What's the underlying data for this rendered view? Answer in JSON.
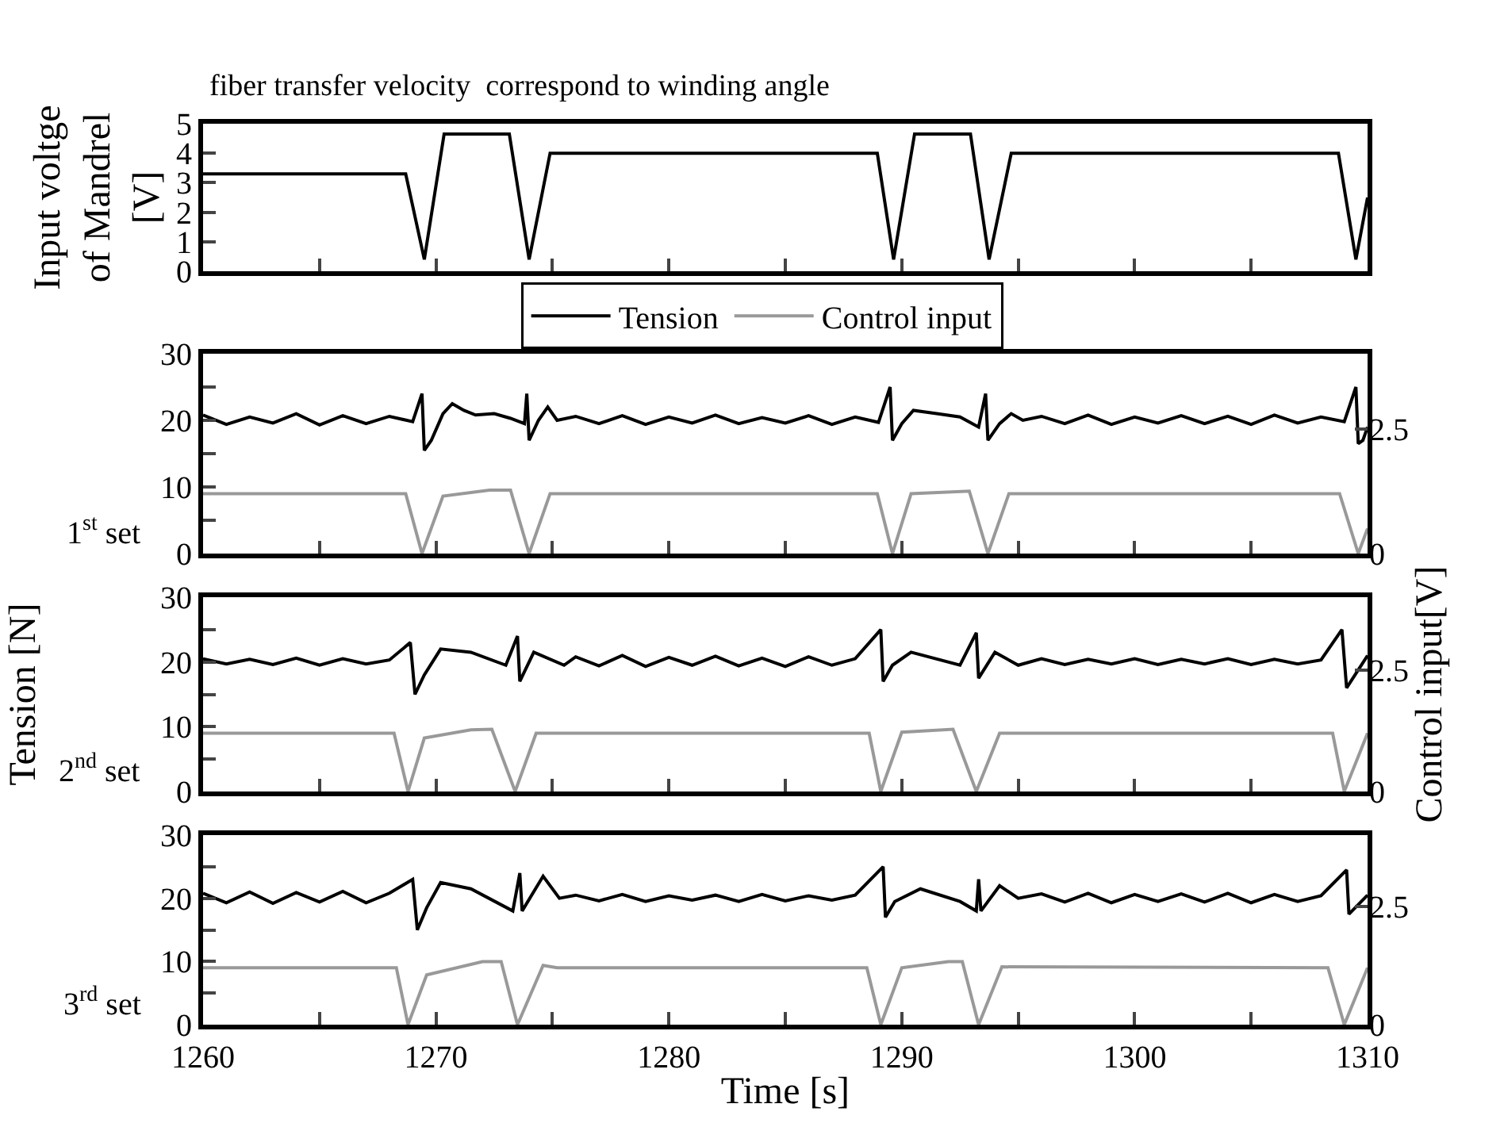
{
  "chart_data": [
    {
      "type": "line",
      "title": "fiber transfer velocity  correspond to winding angle",
      "ylabel": "Input voltge\nof Mandrel\n[V]",
      "xlim": [
        1260,
        1310
      ],
      "xticks": [
        1260,
        {
          "value": 1265,
          "label": null
        },
        1270,
        {
          "value": 1275,
          "label": null
        },
        1280,
        {
          "value": 1285,
          "label": null
        },
        1290,
        {
          "value": 1295,
          "label": null
        },
        1300,
        {
          "value": 1305,
          "label": null
        },
        1310
      ],
      "ylim": [
        0,
        5
      ],
      "yticks": [
        0,
        1,
        2,
        3,
        4,
        5
      ],
      "tick_labels": "y",
      "grid": false,
      "legend": false,
      "marker": "none",
      "line_style": "solid",
      "series": [
        {
          "color": "#000000",
          "x": [
            1260,
            1268.7,
            1269.5,
            1270.35,
            1273.15,
            1274.0,
            1274.9,
            1288.95,
            1289.65,
            1290.55,
            1292.95,
            1293.75,
            1294.7,
            1308.75,
            1309.5,
            1310
          ],
          "values": [
            3.3,
            3.3,
            0.4,
            4.65,
            4.65,
            0.4,
            4.0,
            4.0,
            0.4,
            4.65,
            4.65,
            0.4,
            4.0,
            4.0,
            0.4,
            2.5
          ]
        }
      ]
    },
    {
      "type": "line",
      "annotations": [
        "1$^{st}$ set"
      ],
      "xlim": [
        1260,
        1310
      ],
      "xticks": [
        1260,
        {
          "value": 1265,
          "label": null
        },
        1270,
        {
          "value": 1275,
          "label": null
        },
        1280,
        {
          "value": 1285,
          "label": null
        },
        1290,
        {
          "value": 1295,
          "label": null
        },
        1300,
        {
          "value": 1305,
          "label": null
        },
        1310
      ],
      "ylim": [
        0,
        30
      ],
      "yticks": [
        0,
        {
          "value": 5,
          "label": null
        },
        10,
        {
          "value": 15,
          "label": null
        },
        20,
        {
          "value": 25,
          "label": null
        },
        30
      ],
      "y2lim": [
        0,
        4
      ],
      "y2ticks": [
        0,
        2.5
      ],
      "tick_labels": "y",
      "grid": false,
      "legend": "top",
      "marker": "none",
      "line_style": "solid",
      "series": [
        {
          "name": "Tension",
          "color": "#000000",
          "x": [
            1260,
            1261,
            1262,
            1263,
            1264,
            1265,
            1266,
            1267,
            1268,
            1269,
            1269.4,
            1269.5,
            1269.8,
            1270.3,
            1270.7,
            1271.2,
            1271.7,
            1272.5,
            1273.2,
            1273.8,
            1273.9,
            1274.0,
            1274.4,
            1274.8,
            1275.2,
            1276,
            1277,
            1278,
            1279,
            1280,
            1281,
            1282,
            1283,
            1284,
            1285,
            1286,
            1287,
            1288,
            1289,
            1289.5,
            1289.6,
            1290,
            1290.5,
            1291.5,
            1292.5,
            1293.3,
            1293.6,
            1293.7,
            1294.2,
            1294.7,
            1295.2,
            1296,
            1297,
            1298,
            1299,
            1300,
            1301,
            1302,
            1303,
            1304,
            1305,
            1306,
            1307,
            1308,
            1309,
            1309.5,
            1309.6,
            1309.8,
            1310
          ],
          "values": [
            20.8,
            19.4,
            20.5,
            19.6,
            21.0,
            19.3,
            20.7,
            19.5,
            20.6,
            19.8,
            24,
            15.5,
            17,
            21,
            22.5,
            21.5,
            20.8,
            21,
            20.3,
            19.5,
            24,
            17,
            20,
            22,
            20,
            20.6,
            19.5,
            20.7,
            19.4,
            20.5,
            19.6,
            20.8,
            19.5,
            20.4,
            19.6,
            20.7,
            19.4,
            20.5,
            19.7,
            25,
            17,
            19.5,
            21.5,
            21,
            20.5,
            19,
            24,
            17,
            19.5,
            21,
            20,
            20.6,
            19.5,
            20.8,
            19.4,
            20.5,
            19.6,
            20.7,
            19.5,
            20.6,
            19.4,
            20.8,
            19.6,
            20.5,
            19.8,
            25,
            16.5,
            17,
            19
          ]
        },
        {
          "name": "Control input",
          "color": "#999999",
          "axis": "y2",
          "x": [
            1260,
            1268.7,
            1269.4,
            1270.3,
            1272.3,
            1273.2,
            1274.0,
            1274.9,
            1288.95,
            1289.6,
            1290.4,
            1292.9,
            1293.7,
            1294.6,
            1308.8,
            1309.6,
            1310
          ],
          "values": [
            1.2,
            1.2,
            0,
            1.15,
            1.27,
            1.27,
            0,
            1.2,
            1.2,
            0,
            1.2,
            1.25,
            0,
            1.2,
            1.2,
            0,
            0.5
          ]
        }
      ]
    },
    {
      "type": "line",
      "annotations": [
        "2$^{nd}$ set"
      ],
      "ylabel": "Tension [N]",
      "y2label": "Control input[V]",
      "xlim": [
        1260,
        1310
      ],
      "xticks": [
        1260,
        {
          "value": 1265,
          "label": null
        },
        1270,
        {
          "value": 1275,
          "label": null
        },
        1280,
        {
          "value": 1285,
          "label": null
        },
        1290,
        {
          "value": 1295,
          "label": null
        },
        1300,
        {
          "value": 1305,
          "label": null
        },
        1310
      ],
      "ylim": [
        0,
        30
      ],
      "yticks": [
        0,
        {
          "value": 5,
          "label": null
        },
        10,
        {
          "value": 15,
          "label": null
        },
        20,
        {
          "value": 25,
          "label": null
        },
        30
      ],
      "y2lim": [
        0,
        4
      ],
      "y2ticks": [
        0,
        2.5
      ],
      "tick_labels": "y",
      "grid": false,
      "legend": false,
      "marker": "none",
      "line_style": "solid",
      "series": [
        {
          "color": "#000000",
          "x": [
            1260,
            1261,
            1262,
            1263,
            1264,
            1265,
            1266,
            1267,
            1268,
            1268.9,
            1269.1,
            1269.5,
            1270.2,
            1271.5,
            1273,
            1273.5,
            1273.6,
            1274.2,
            1275.5,
            1276,
            1277,
            1278,
            1279,
            1280,
            1281,
            1282,
            1283,
            1284,
            1285,
            1286,
            1287,
            1288,
            1289.1,
            1289.2,
            1289.6,
            1290.4,
            1292.5,
            1293.2,
            1293.3,
            1294,
            1295,
            1296,
            1297,
            1298,
            1299,
            1300,
            1301,
            1302,
            1303,
            1304,
            1305,
            1306,
            1307,
            1308,
            1308.9,
            1309.1,
            1310
          ],
          "values": [
            20.5,
            19.7,
            20.4,
            19.6,
            20.6,
            19.5,
            20.5,
            19.7,
            20.3,
            23,
            15,
            18,
            22,
            21.5,
            19.5,
            24,
            17,
            21.5,
            19.5,
            20.8,
            19.4,
            21,
            19.3,
            20.7,
            19.5,
            20.9,
            19.4,
            20.6,
            19.3,
            20.8,
            19.5,
            20.5,
            25,
            17,
            19.5,
            21.5,
            19.5,
            24.5,
            17.5,
            21.5,
            19.5,
            20.5,
            19.6,
            20.4,
            19.7,
            20.5,
            19.6,
            20.4,
            19.7,
            20.5,
            19.6,
            20.4,
            19.7,
            20.3,
            25,
            16,
            21
          ]
        },
        {
          "color": "#999999",
          "axis": "y2",
          "x": [
            1260,
            1268.2,
            1268.8,
            1269.5,
            1271.5,
            1272.4,
            1273.4,
            1274.3,
            1288.6,
            1289.1,
            1290,
            1292.2,
            1293.2,
            1294.2,
            1308.5,
            1309,
            1310
          ],
          "values": [
            1.2,
            1.2,
            0,
            1.1,
            1.27,
            1.28,
            0,
            1.2,
            1.2,
            0,
            1.22,
            1.28,
            0,
            1.2,
            1.2,
            0,
            1.2
          ]
        }
      ]
    },
    {
      "type": "line",
      "annotations": [
        "3$^{rd}$ set"
      ],
      "xlabel": "Time [s]",
      "xlim": [
        1260,
        1310
      ],
      "xticks": [
        1260,
        {
          "value": 1265,
          "label": null
        },
        1270,
        {
          "value": 1275,
          "label": null
        },
        1280,
        {
          "value": 1285,
          "label": null
        },
        1290,
        {
          "value": 1295,
          "label": null
        },
        1300,
        {
          "value": 1305,
          "label": null
        },
        1310
      ],
      "ylim": [
        0,
        30
      ],
      "yticks": [
        0,
        {
          "value": 5,
          "label": null
        },
        10,
        {
          "value": 15,
          "label": null
        },
        20,
        {
          "value": 25,
          "label": null
        },
        30
      ],
      "y2lim": [
        0,
        4
      ],
      "y2ticks": [
        0,
        2.5
      ],
      "grid": false,
      "legend": false,
      "marker": "none",
      "line_style": "solid",
      "series": [
        {
          "color": "#000000",
          "x": [
            1260,
            1261,
            1262,
            1263,
            1264,
            1265,
            1266,
            1267,
            1268,
            1269.0,
            1269.2,
            1269.6,
            1270.2,
            1271.5,
            1273.3,
            1273.6,
            1273.7,
            1274.6,
            1275.3,
            1276,
            1277,
            1278,
            1279,
            1280,
            1281,
            1282,
            1283,
            1284,
            1285,
            1286,
            1287,
            1288,
            1289.2,
            1289.3,
            1289.7,
            1290.8,
            1292.5,
            1293.2,
            1293.3,
            1293.4,
            1294.2,
            1295,
            1296,
            1297,
            1298,
            1299,
            1300,
            1301,
            1302,
            1303,
            1304,
            1305,
            1306,
            1307,
            1308,
            1309.1,
            1309.2,
            1310
          ],
          "values": [
            20.8,
            19.3,
            21,
            19.2,
            20.9,
            19.4,
            21.1,
            19.3,
            20.8,
            23,
            15,
            18.5,
            22.5,
            21.5,
            18,
            24,
            18,
            23.5,
            20,
            20.5,
            19.6,
            20.6,
            19.5,
            20.4,
            19.7,
            20.5,
            19.5,
            20.6,
            19.6,
            20.4,
            19.7,
            20.5,
            25,
            17,
            19.5,
            21.5,
            19.5,
            18,
            23,
            18,
            22,
            20,
            20.7,
            19.4,
            20.8,
            19.3,
            20.6,
            19.5,
            20.7,
            19.4,
            20.8,
            19.3,
            20.6,
            19.5,
            20.4,
            24.5,
            17.5,
            20.5
          ]
        },
        {
          "color": "#999999",
          "axis": "y2",
          "x": [
            1260,
            1268.3,
            1268.8,
            1269.6,
            1272,
            1272.8,
            1273.5,
            1274.6,
            1275.2,
            1288.5,
            1289.1,
            1290,
            1292,
            1292.6,
            1293.3,
            1294.3,
            1308.3,
            1309.0,
            1310
          ],
          "values": [
            1.2,
            1.2,
            0,
            1.05,
            1.33,
            1.33,
            0,
            1.25,
            1.2,
            1.2,
            0,
            1.2,
            1.33,
            1.33,
            0,
            1.22,
            1.2,
            0,
            1.2
          ]
        }
      ]
    }
  ]
}
